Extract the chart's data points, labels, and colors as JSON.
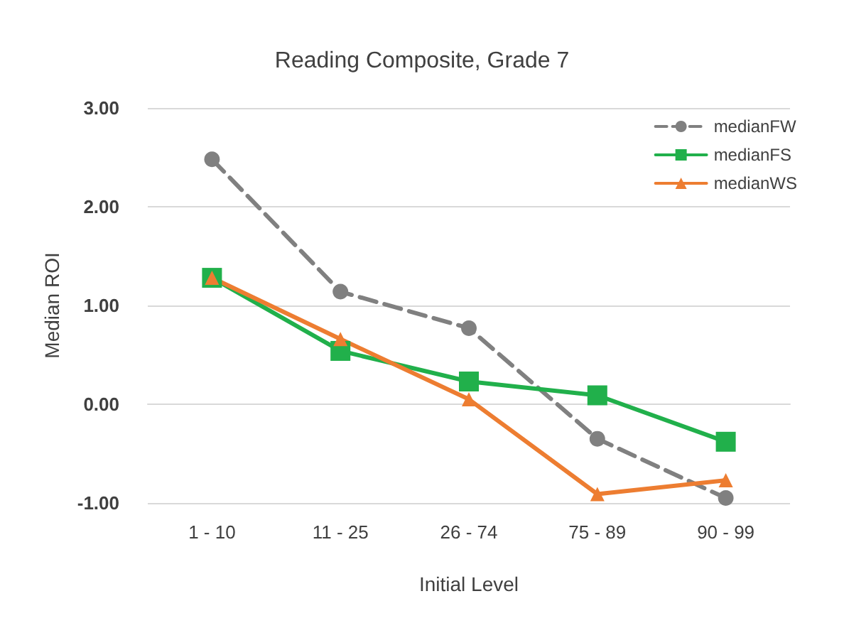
{
  "chart_data": {
    "type": "line",
    "title": "Reading Composite, Grade 7",
    "xlabel": "Initial Level",
    "ylabel": "Median ROI",
    "categories": [
      "1 - 10",
      "11 - 25",
      "26 - 74",
      "75 - 89",
      "90 - 99"
    ],
    "series": [
      {
        "name": "medianFW",
        "color": "#808080",
        "marker": "circle",
        "line_style": "dashed",
        "values": [
          2.48,
          1.14,
          0.77,
          -0.35,
          -0.95
        ]
      },
      {
        "name": "medianFS",
        "color": "#21b04b",
        "marker": "square",
        "line_style": "solid",
        "values": [
          1.28,
          0.54,
          0.23,
          0.09,
          -0.38
        ]
      },
      {
        "name": "medianWS",
        "color": "#ed7d31",
        "marker": "triangle",
        "line_style": "solid",
        "values": [
          1.28,
          0.66,
          0.05,
          -0.91,
          -0.77
        ]
      }
    ],
    "ylim": [
      -1,
      3
    ],
    "yticks": [
      {
        "value": -1,
        "label": "-1.00"
      },
      {
        "value": 0,
        "label": "0.00"
      },
      {
        "value": 1,
        "label": "1.00"
      },
      {
        "value": 2,
        "label": "2.00"
      },
      {
        "value": 3,
        "label": "3.00"
      }
    ],
    "grid": "y",
    "legend": "top right"
  }
}
